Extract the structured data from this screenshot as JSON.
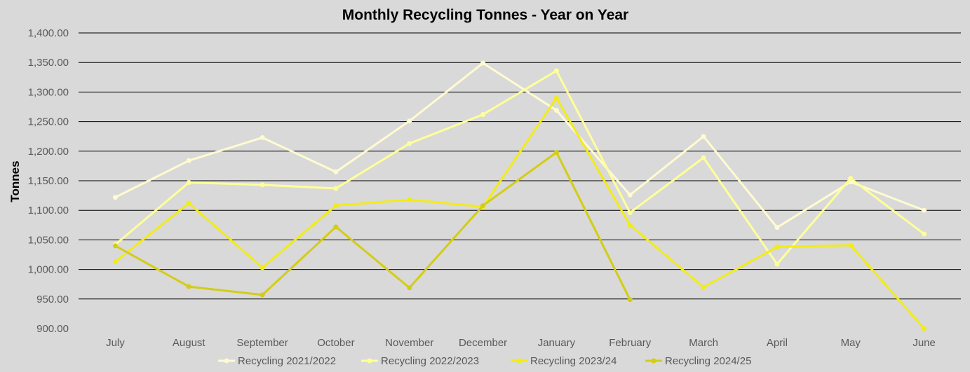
{
  "chart_data": {
    "type": "line",
    "title": "Monthly Recycling Tonnes - Year on Year",
    "xlabel": "",
    "ylabel": "Tonnes",
    "ylim": [
      900,
      1400
    ],
    "ystep": 50,
    "ytick_labels": [
      "900.00",
      "950.00",
      "1,000.00",
      "1,050.00",
      "1,100.00",
      "1,150.00",
      "1,200.00",
      "1,250.00",
      "1,300.00",
      "1,350.00",
      "1,400.00"
    ],
    "grid": true,
    "legend_position": "bottom",
    "categories": [
      "July",
      "August",
      "September",
      "October",
      "November",
      "December",
      "January",
      "February",
      "March",
      "April",
      "May",
      "June"
    ],
    "series": [
      {
        "name": "Recycling 2021/2022",
        "color": "#fffbd0",
        "values": [
          1122,
          1184,
          1223,
          1165,
          1251,
          1349,
          1269,
          1126,
          1225,
          1071,
          1148,
          1100
        ]
      },
      {
        "name": "Recycling 2022/2023",
        "color": "#ffff99",
        "values": [
          1042,
          1147,
          1143,
          1137,
          1213,
          1262,
          1336,
          1096,
          1189,
          1009,
          1154,
          1060
        ]
      },
      {
        "name": "Recycling 2023/24",
        "color": "#f2ec16",
        "values": [
          1013,
          1112,
          1003,
          1108,
          1118,
          1106,
          1290,
          1075,
          970,
          1038,
          1041,
          900
        ]
      },
      {
        "name": "Recycling 2024/25",
        "color": "#d4cc15",
        "values": [
          1040,
          971,
          957,
          1072,
          969,
          1108,
          1198,
          949,
          null,
          null,
          null,
          null
        ]
      }
    ]
  }
}
